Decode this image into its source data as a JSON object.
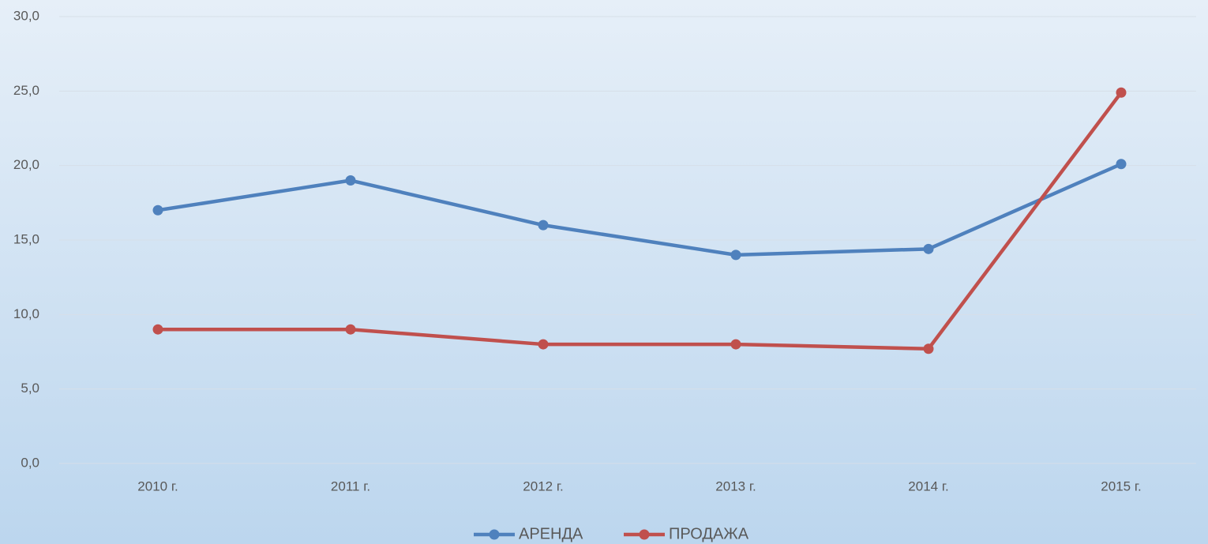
{
  "chart_data": {
    "type": "line",
    "categories": [
      "2010 г.",
      "2011 г.",
      "2012 г.",
      "2013 г.",
      "2014 г.",
      "2015 г."
    ],
    "series": [
      {
        "name": "АРЕНДА",
        "color": "#4f81bd",
        "values": [
          17.0,
          19.0,
          16.0,
          14.0,
          14.4,
          20.1
        ]
      },
      {
        "name": "ПРОДАЖА",
        "color": "#c0504d",
        "values": [
          9.0,
          9.0,
          8.0,
          8.0,
          7.7,
          24.9
        ]
      }
    ],
    "ylim": [
      0,
      30
    ],
    "yticks": [
      {
        "value": 0,
        "label": "0,0"
      },
      {
        "value": 5,
        "label": "5,0"
      },
      {
        "value": 10,
        "label": "10,0"
      },
      {
        "value": 15,
        "label": "15,0"
      },
      {
        "value": 20,
        "label": "20,0"
      },
      {
        "value": 25,
        "label": "25,0"
      },
      {
        "value": 30,
        "label": "30,0"
      }
    ],
    "grid": true,
    "legend": "bottom"
  }
}
